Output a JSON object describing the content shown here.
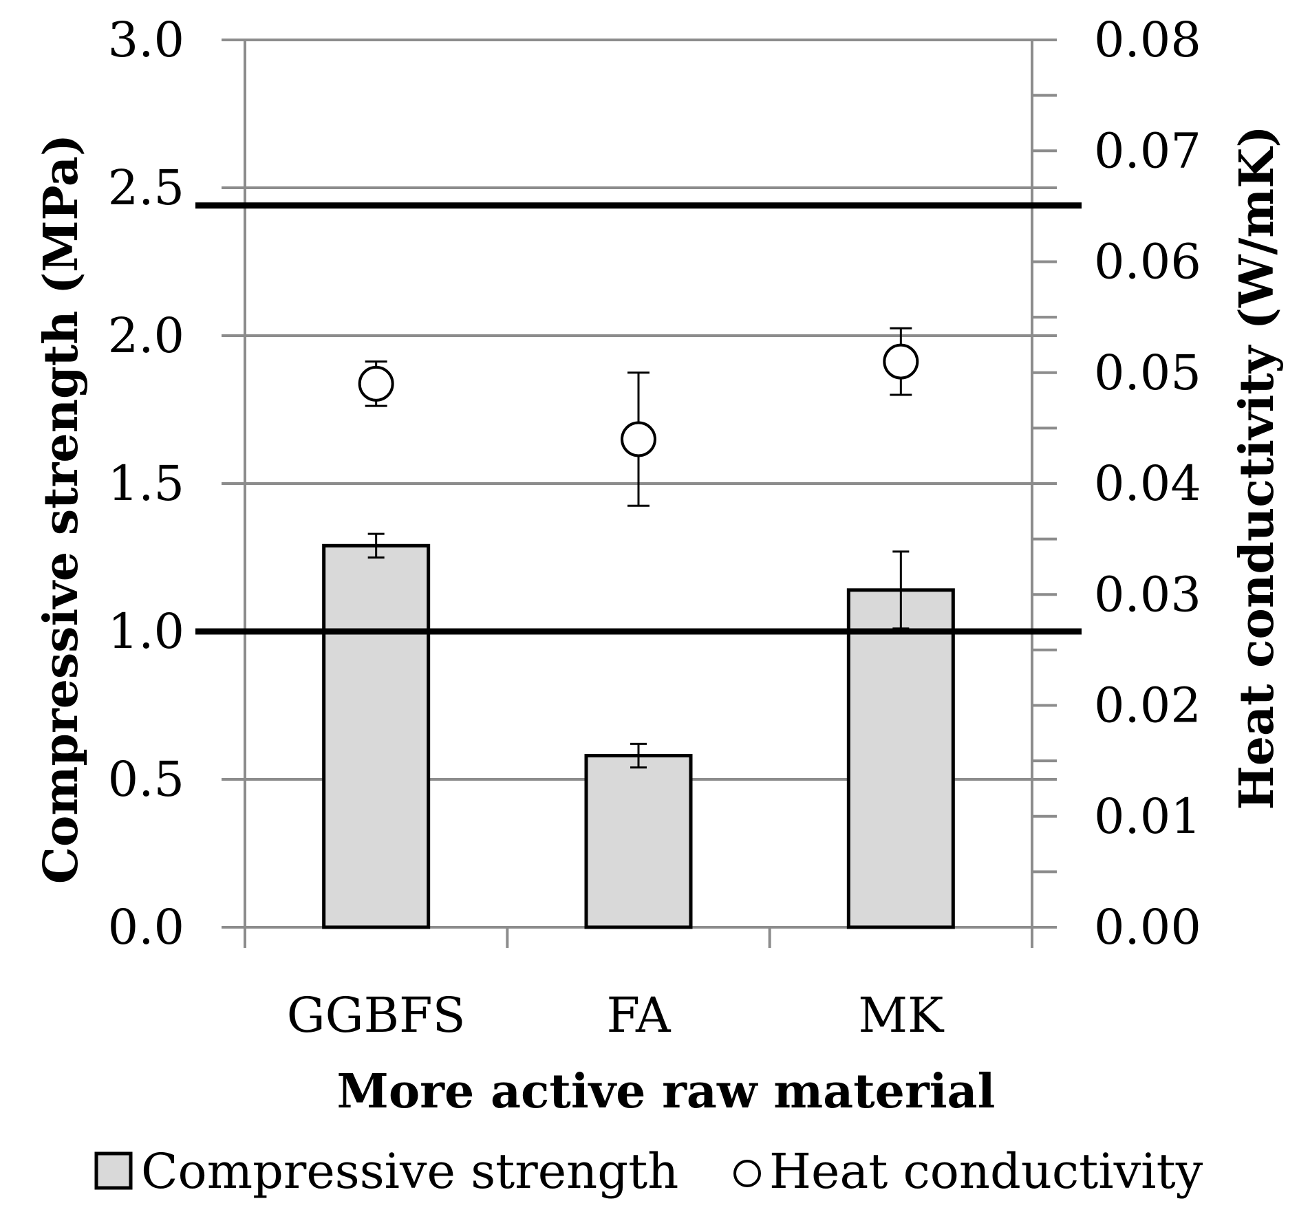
{
  "chart_data": {
    "type": "bar",
    "xlabel": "More active raw material",
    "ylabel": "Compressive strength (MPa)",
    "y2label": "Heat conductivity (W/mK)",
    "categories": [
      "GGBFS",
      "FA",
      "MK"
    ],
    "ylim": [
      0,
      3.0
    ],
    "y2lim": [
      0,
      0.08
    ],
    "yticks": [
      "0.0",
      "0.5",
      "1.0",
      "1.5",
      "2.0",
      "2.5",
      "3.0"
    ],
    "y2ticks": [
      "0.00",
      "0.01",
      "0.02",
      "0.03",
      "0.04",
      "0.05",
      "0.06",
      "0.07",
      "0.08"
    ],
    "grid": true,
    "legend_position": "bottom",
    "series": [
      {
        "name": "Compressive strength",
        "kind": "bar",
        "axis": "left",
        "values": [
          1.29,
          0.58,
          1.14
        ],
        "error": [
          0.04,
          0.04,
          0.13
        ],
        "color": "#d9d9d9"
      },
      {
        "name": "Heat conductivity",
        "kind": "marker",
        "axis": "right",
        "values": [
          0.049,
          0.044,
          0.051
        ],
        "error": [
          0.002,
          0.006,
          0.003
        ],
        "color": "#ffffff"
      }
    ],
    "reference_lines": [
      {
        "axis": "left",
        "value": 2.44
      },
      {
        "axis": "left",
        "value": 1.0
      }
    ]
  }
}
